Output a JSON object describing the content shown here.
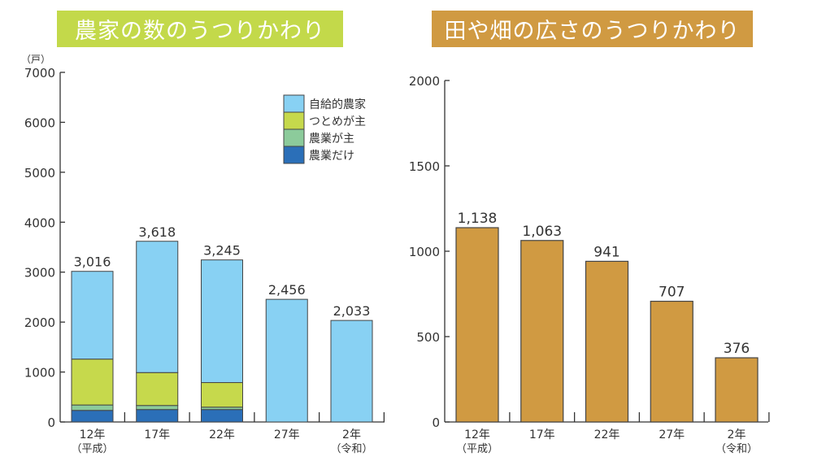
{
  "chart_data": [
    {
      "type": "bar",
      "stacked": true,
      "title": "農家の数のうつりかわり",
      "ylabel": "（戸）",
      "ylim": [
        0,
        7000
      ],
      "yticks": [
        "0",
        "1000",
        "2000",
        "3000",
        "4000",
        "5000",
        "6000",
        "7000"
      ],
      "categories": [
        [
          "12年",
          "（平成）"
        ],
        [
          "17年",
          ""
        ],
        [
          "22年",
          ""
        ],
        [
          "27年",
          ""
        ],
        [
          "2年",
          "（令和）"
        ]
      ],
      "series": [
        {
          "name": "農業だけ",
          "color": "#2b6fb8",
          "values": [
            232,
            249,
            249,
            0,
            0
          ]
        },
        {
          "name": "農業が主",
          "color": "#8ccb9b",
          "values": [
            108,
            81,
            48,
            0,
            0
          ]
        },
        {
          "name": "つとめが主",
          "color": "#c6d94c",
          "values": [
            919,
            659,
            492,
            0,
            0
          ]
        },
        {
          "name": "自給的農家",
          "color": "#88d1f3",
          "values": [
            1757,
            2629,
            2456,
            2456,
            2033
          ]
        }
      ],
      "totals": [
        3016,
        3618,
        3245,
        2456,
        2033
      ],
      "total_labels": [
        "3,016",
        "3,618",
        "3,245",
        "2,456",
        "2,033"
      ],
      "legend_position": "top-right"
    },
    {
      "type": "bar",
      "title": "田や畑の広さのうつりかわり",
      "ylim": [
        0,
        2000
      ],
      "yticks": [
        "0",
        "500",
        "1000",
        "1500",
        "2000"
      ],
      "categories": [
        [
          "12年",
          "（平成）"
        ],
        [
          "17年",
          ""
        ],
        [
          "22年",
          ""
        ],
        [
          "27年",
          ""
        ],
        [
          "2年",
          "（令和）"
        ]
      ],
      "values": [
        1138,
        1063,
        941,
        707,
        376
      ],
      "value_labels": [
        "1,138",
        "1,063",
        "941",
        "707",
        "376"
      ],
      "color": "#d09a42"
    }
  ]
}
